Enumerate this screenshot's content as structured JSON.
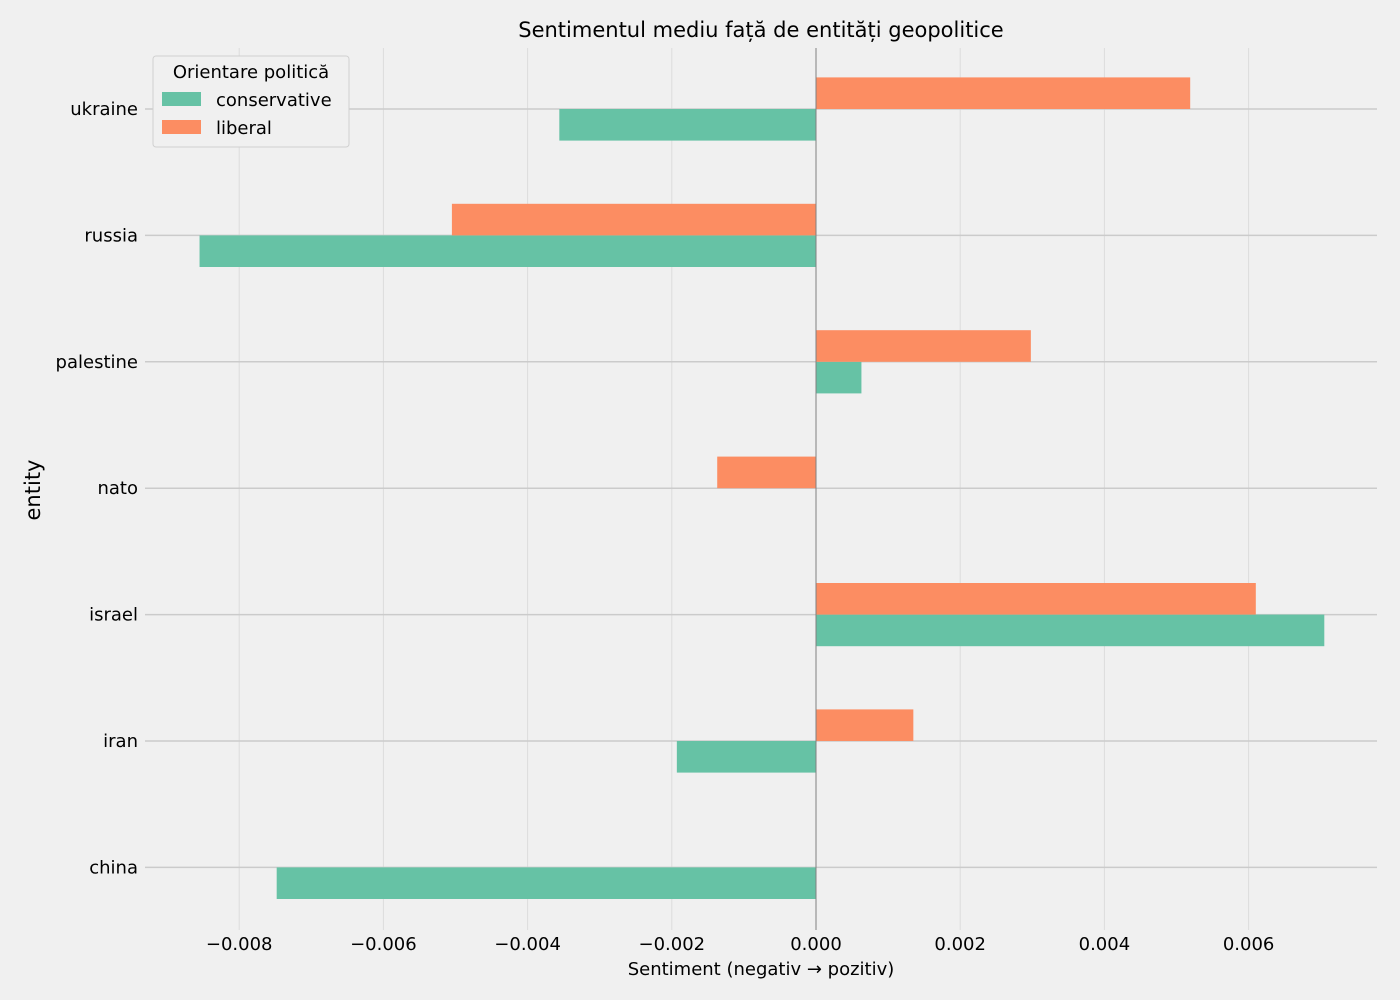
{
  "chart_data": {
    "type": "bar",
    "orientation": "horizontal",
    "title": "Sentimentul mediu față de entități geopolitice",
    "xlabel": "Sentiment (negativ → pozitiv)",
    "ylabel": "entity",
    "categories": [
      "ukraine",
      "russia",
      "palestine",
      "nato",
      "israel",
      "iran",
      "china"
    ],
    "series": [
      {
        "name": "conservative",
        "color": "#66c2a5",
        "values": [
          -0.00356,
          -0.00855,
          0.00063,
          0.0,
          0.00705,
          -0.00193,
          -0.00748
        ]
      },
      {
        "name": "liberal",
        "color": "#fc8d62",
        "values": [
          0.00519,
          -0.00505,
          0.00298,
          -0.00137,
          0.0061,
          0.00135,
          0.0
        ]
      }
    ],
    "xlim": [
      -0.0092,
      0.0078
    ],
    "xticks": [
      -0.008,
      -0.006,
      -0.004,
      -0.002,
      0.0,
      0.002,
      0.004,
      0.006
    ],
    "xtick_labels": [
      "−0.008",
      "−0.006",
      "−0.004",
      "−0.002",
      "0.000",
      "0.002",
      "0.004",
      "0.006"
    ],
    "grid": true,
    "legend": {
      "title": "Orientare politică",
      "placement": "top-left"
    }
  }
}
